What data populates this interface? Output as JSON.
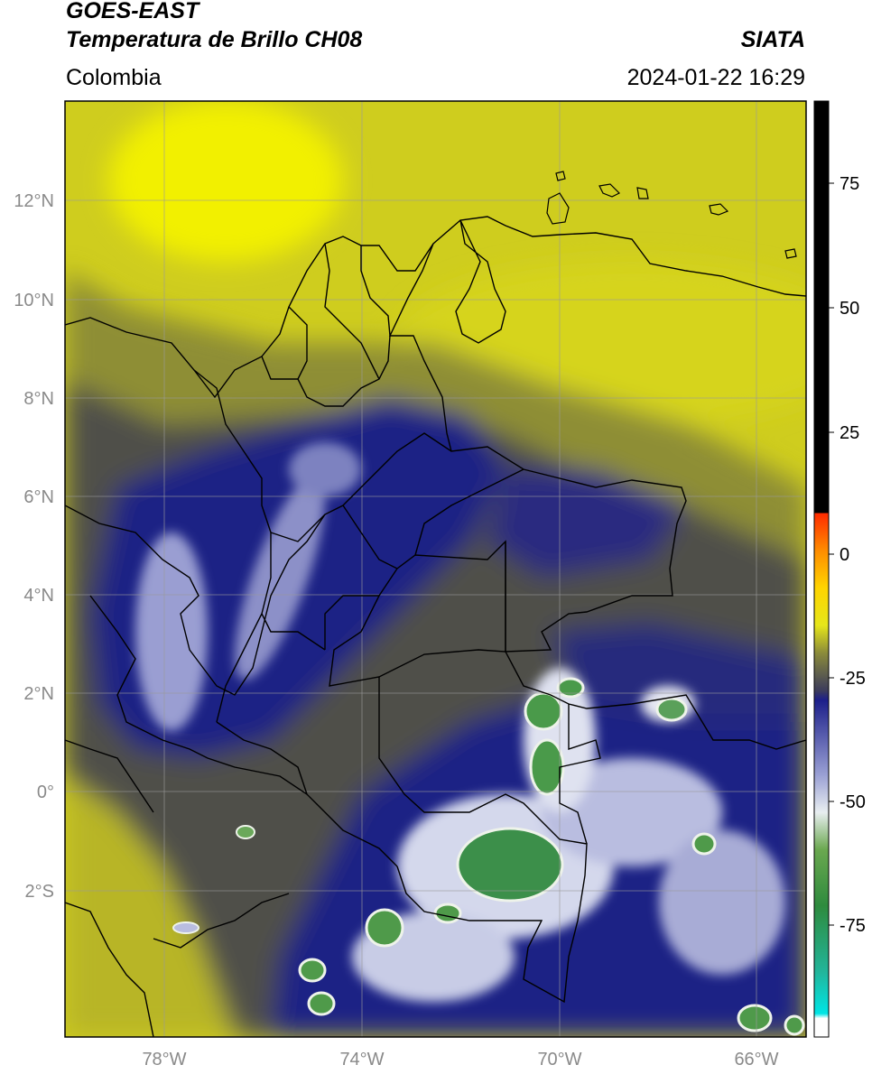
{
  "header": {
    "satellite": "GOES-EAST",
    "product": "Temperatura de Brillo CH08",
    "source": "SIATA",
    "region": "Colombia",
    "datetime": "2024-01-22 16:29"
  },
  "map": {
    "lat_ticks": [
      "12°N",
      "10°N",
      "8°N",
      "6°N",
      "4°N",
      "2°N",
      "0°",
      "2°S"
    ],
    "lon_ticks": [
      "78°W",
      "74°W",
      "70°W",
      "66°W"
    ],
    "colors": {
      "yellow": "#d8d419",
      "olive": "#9a9a2e",
      "gray_olive": "#5a5a4a",
      "navy": "#1f2085",
      "lavender": "#8c90c8",
      "white_cloud": "#e6e8f2",
      "green": "#3f8f3f",
      "light_green": "#7bbf6f"
    }
  },
  "colorbar": {
    "ticks": [
      "75",
      "50",
      "25",
      "0",
      "-25",
      "-50",
      "-75"
    ]
  }
}
